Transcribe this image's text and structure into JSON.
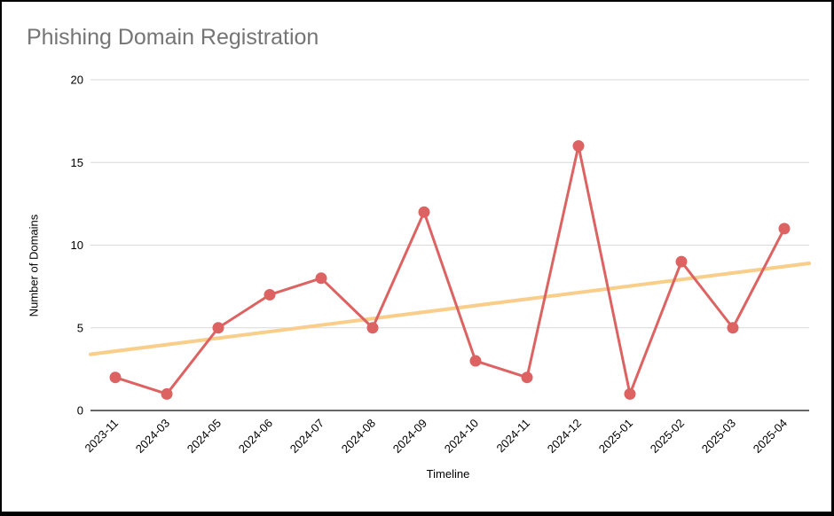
{
  "chart_data": {
    "type": "line",
    "title": "Phishing Domain Registration",
    "xlabel": "Timeline",
    "ylabel": "Number of Domains",
    "categories": [
      "2023-11",
      "2024-03",
      "2024-05",
      "2024-06",
      "2024-07",
      "2024-08",
      "2024-09",
      "2024-10",
      "2024-11",
      "2024-12",
      "2025-01",
      "2025-02",
      "2025-03",
      "2025-04"
    ],
    "series": [
      {
        "name": "Number of Domains",
        "type": "line",
        "color": "#dd6363",
        "marker": "circle",
        "values": [
          2,
          1,
          5,
          7,
          8,
          5,
          12,
          3,
          2,
          16,
          1,
          9,
          5,
          11
        ]
      },
      {
        "name": "Trendline",
        "type": "trend",
        "color": "#f9cd8a",
        "start_value": 3.4,
        "end_value": 8.9
      }
    ],
    "ylim": [
      0,
      20
    ],
    "yticks": [
      0,
      5,
      10,
      15,
      20
    ],
    "grid": true,
    "legend_position": "none",
    "x_label_rotation_deg": -45,
    "colors": {
      "title": "#757575",
      "axis_text": "#000000",
      "gridline": "#d9d9d9",
      "baseline": "#666666",
      "background": "#ffffff",
      "frame": "#000000"
    }
  }
}
